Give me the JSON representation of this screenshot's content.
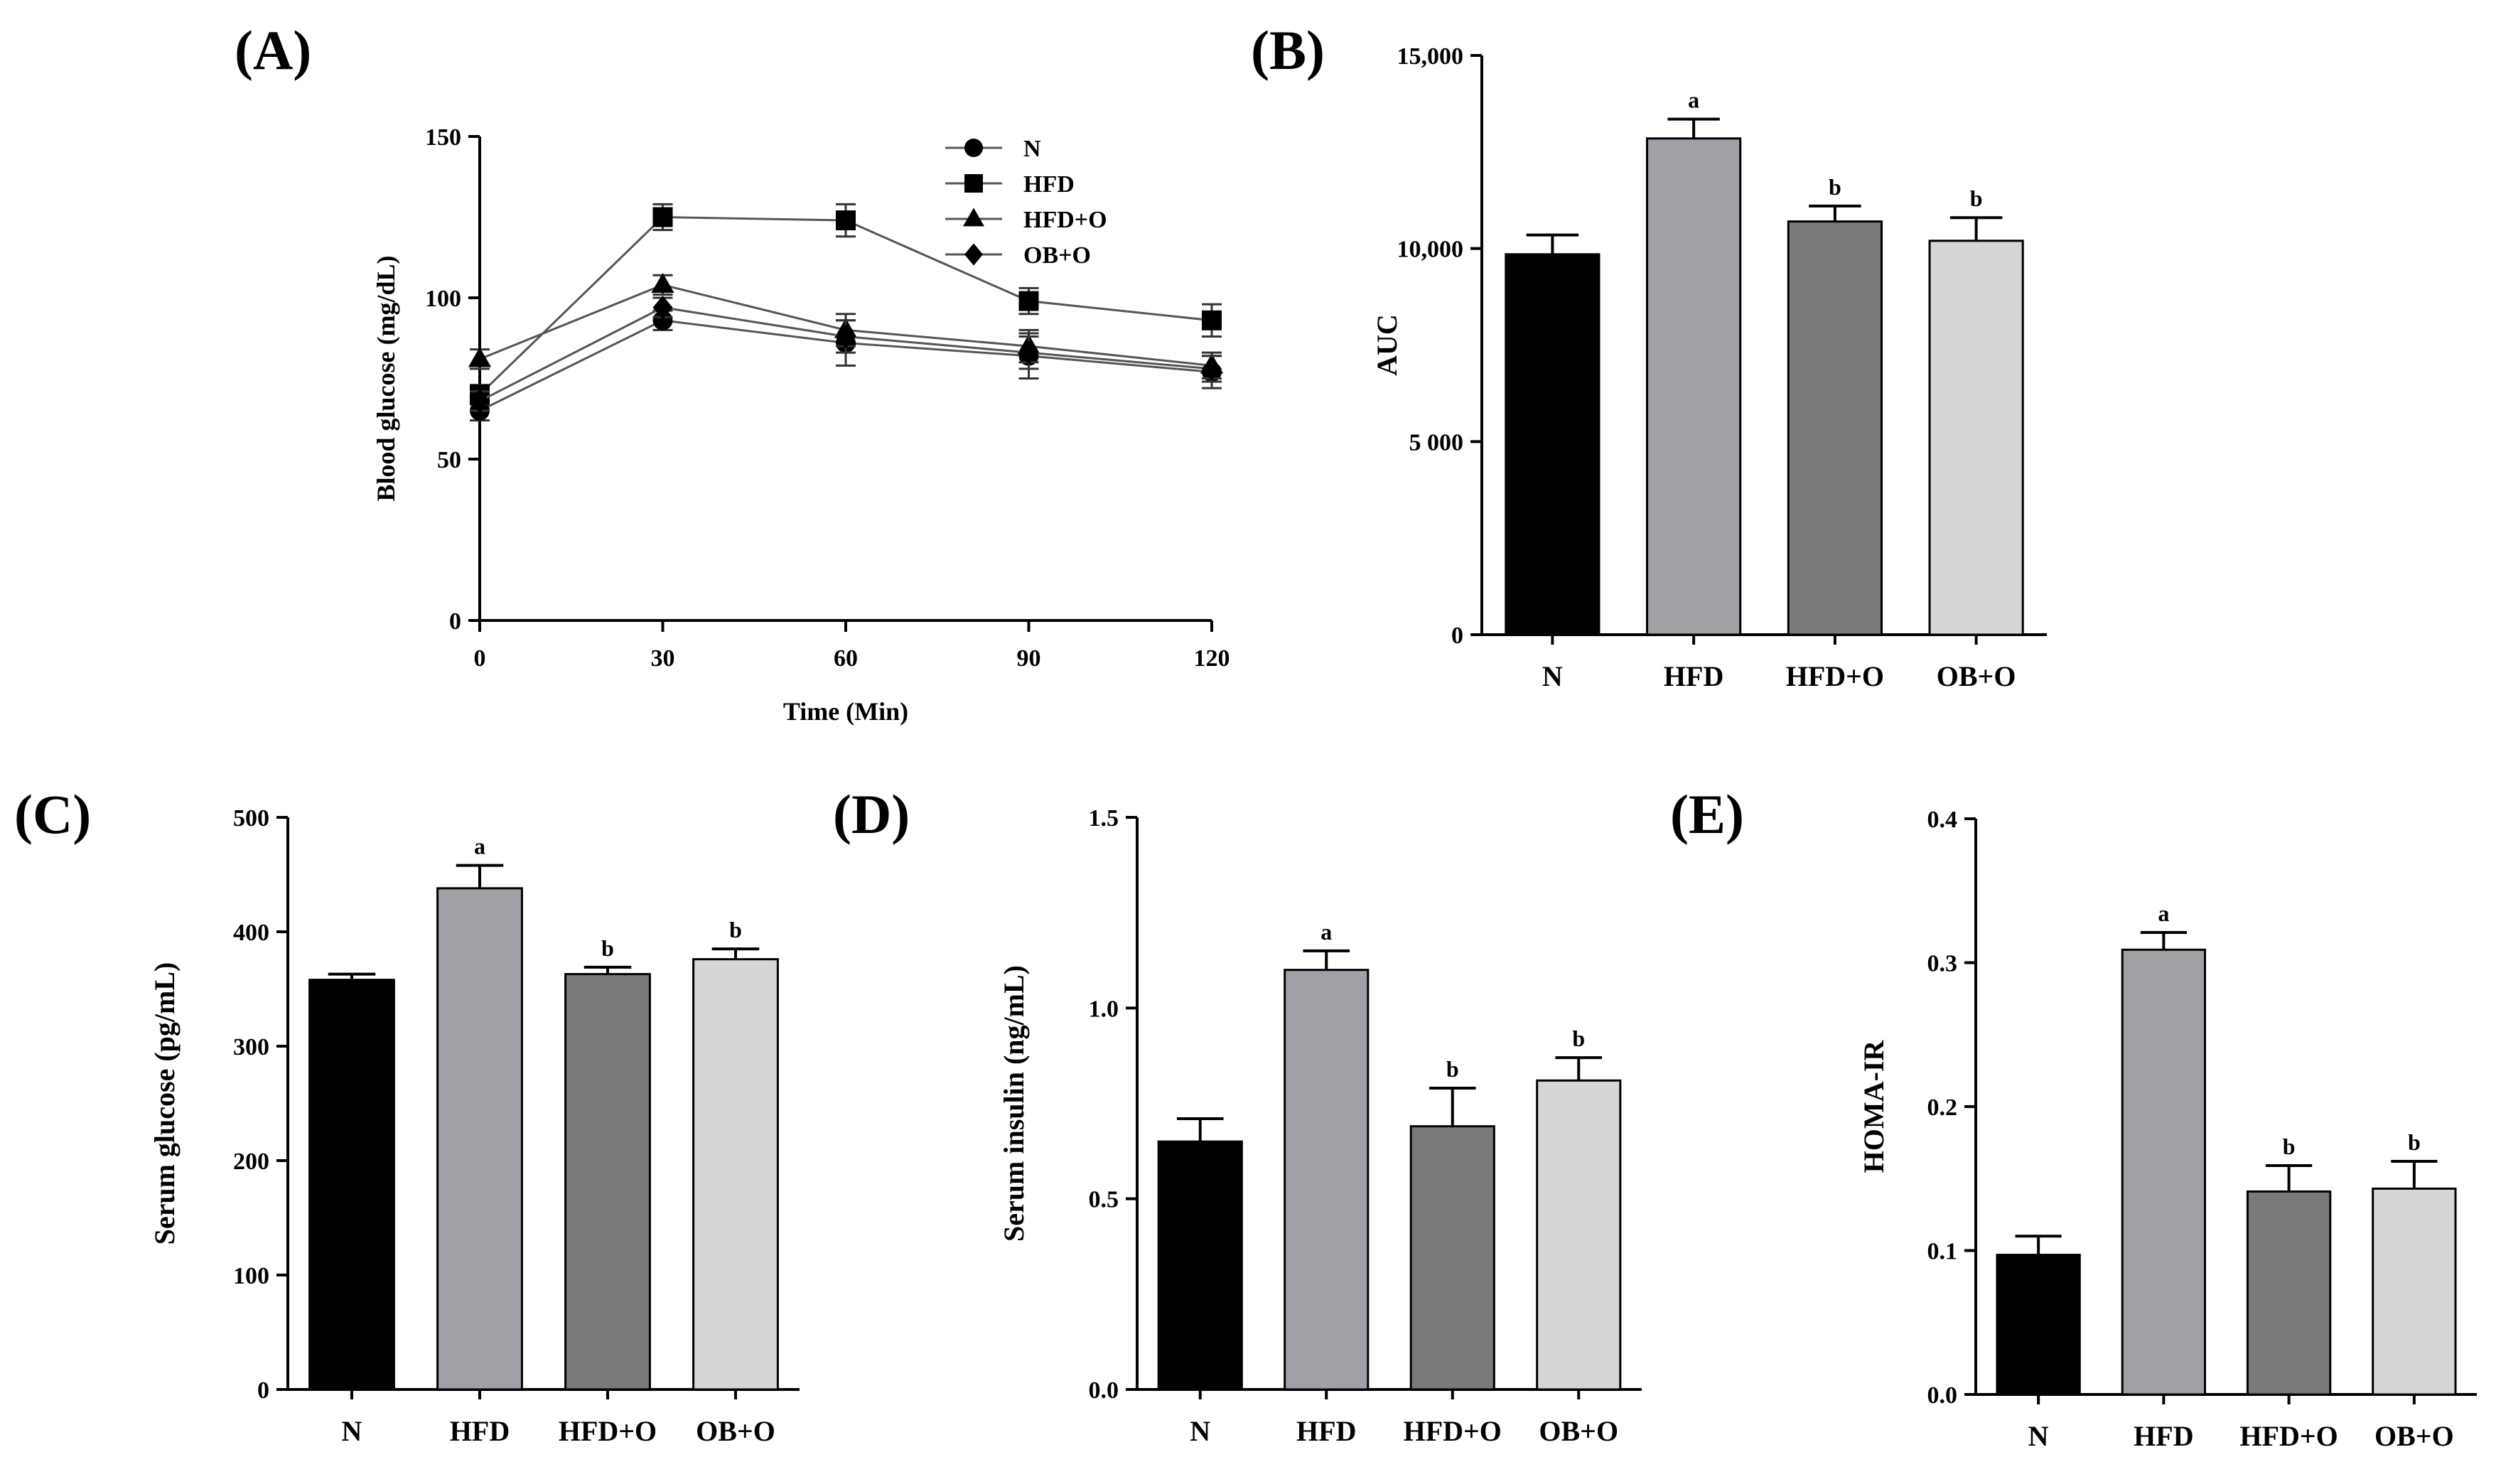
{
  "chart_data": [
    {
      "id": "A",
      "panel_label": "(A)",
      "type": "line",
      "title": "",
      "xlabel": "Time (Min)",
      "ylabel": "Blood glucose (mg/dL)",
      "x": [
        0,
        30,
        60,
        90,
        120
      ],
      "x_ticks": [
        "0",
        "30",
        "60",
        "90",
        "120"
      ],
      "xlim": [
        0,
        120
      ],
      "ylim": [
        0,
        150
      ],
      "y_ticks": [
        "0",
        "50",
        "100",
        "150"
      ],
      "legend_position": "top-right",
      "series": [
        {
          "name": "N",
          "marker": "circle",
          "values": [
            65,
            93,
            86,
            82,
            77
          ],
          "errors": [
            3,
            3,
            7,
            7,
            5
          ]
        },
        {
          "name": "HFD",
          "marker": "square",
          "values": [
            70,
            125,
            124,
            99,
            93
          ],
          "errors": [
            3,
            4,
            5,
            4,
            5
          ]
        },
        {
          "name": "HFD+O",
          "marker": "triangle",
          "values": [
            81,
            104,
            90,
            85,
            79
          ],
          "errors": [
            3,
            3,
            5,
            5,
            4
          ]
        },
        {
          "name": "OB+O",
          "marker": "diamond",
          "values": [
            68,
            97,
            88,
            83,
            78
          ],
          "errors": [
            3,
            3,
            5,
            5,
            4
          ]
        }
      ]
    },
    {
      "id": "B",
      "panel_label": "(B)",
      "type": "bar",
      "title": "",
      "xlabel": "",
      "ylabel": "AUC",
      "categories": [
        "N",
        "HFD",
        "HFD+O",
        "OB+O"
      ],
      "values": [
        9850,
        12850,
        10700,
        10200
      ],
      "errors": [
        500,
        500,
        400,
        600
      ],
      "significance": [
        "",
        "a",
        "b",
        "b"
      ],
      "ylim": [
        0,
        15000
      ],
      "y_ticks": [
        "0",
        "5 000",
        "10,000",
        "15,000"
      ],
      "colors": [
        "#000000",
        "#a0a0a6",
        "#7a7a7a",
        "#d6d6d6"
      ]
    },
    {
      "id": "C",
      "panel_label": "(C)",
      "type": "bar",
      "title": "",
      "xlabel": "",
      "ylabel": "Serum glucose (pg/mL)",
      "categories": [
        "N",
        "HFD",
        "HFD+O",
        "OB+O"
      ],
      "values": [
        358,
        438,
        363,
        376
      ],
      "errors": [
        5,
        20,
        6,
        9
      ],
      "significance": [
        "",
        "a",
        "b",
        "b"
      ],
      "ylim": [
        0,
        500
      ],
      "y_ticks": [
        "0",
        "100",
        "200",
        "300",
        "400",
        "500"
      ],
      "colors": [
        "#000000",
        "#a0a0a6",
        "#7a7a7a",
        "#d6d6d6"
      ]
    },
    {
      "id": "D",
      "panel_label": "(D)",
      "type": "bar",
      "title": "",
      "xlabel": "",
      "ylabel": "Serum insulin (ng/mL)",
      "categories": [
        "N",
        "HFD",
        "HFD+O",
        "OB+O"
      ],
      "values": [
        0.65,
        1.1,
        0.69,
        0.81
      ],
      "errors": [
        0.06,
        0.05,
        0.1,
        0.06
      ],
      "significance": [
        "",
        "a",
        "b",
        "b"
      ],
      "ylim": [
        0,
        1.5
      ],
      "y_ticks": [
        "0.0",
        "0.5",
        "1.0",
        "1.5"
      ],
      "colors": [
        "#000000",
        "#a0a0a6",
        "#7a7a7a",
        "#d6d6d6"
      ]
    },
    {
      "id": "E",
      "panel_label": "(E)",
      "type": "bar",
      "title": "",
      "xlabel": "",
      "ylabel": "HOMA-IR",
      "categories": [
        "N",
        "HFD",
        "HFD+O",
        "OB+O"
      ],
      "values": [
        0.097,
        0.309,
        0.141,
        0.143
      ],
      "errors": [
        0.013,
        0.012,
        0.018,
        0.019
      ],
      "significance": [
        "",
        "a",
        "b",
        "b"
      ],
      "ylim": [
        0,
        0.4
      ],
      "y_ticks": [
        "0.0",
        "0.1",
        "0.2",
        "0.3",
        "0.4"
      ],
      "colors": [
        "#000000",
        "#a0a0a6",
        "#7a7a7a",
        "#d6d6d6"
      ]
    }
  ]
}
